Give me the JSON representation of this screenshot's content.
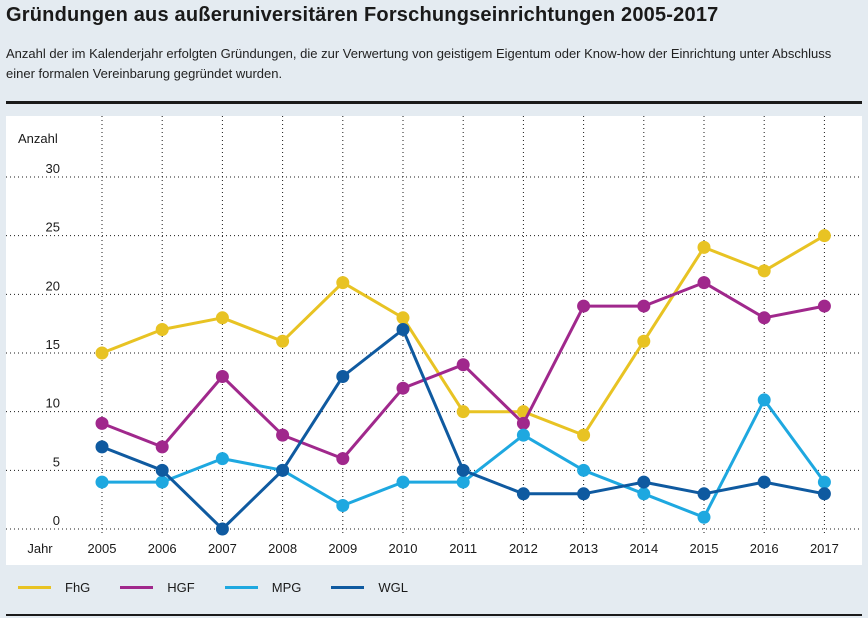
{
  "chart_data": {
    "type": "line",
    "title": "Gründungen aus außeruniversitären Forschungseinrichtungen 2005-2017",
    "subtitle": "Anzahl der im Kalenderjahr erfolgten Gründungen, die zur Verwertung von geistigem Eigentum oder Know-how der Einrichtung unter Abschluss einer formalen Vereinbarung gegründet wurden.",
    "ylabel": "Anzahl",
    "xlabel": "Jahr",
    "x": [
      "2005",
      "2006",
      "2007",
      "2008",
      "2009",
      "2010",
      "2011",
      "2012",
      "2013",
      "2014",
      "2015",
      "2016",
      "2017"
    ],
    "yticks": [
      0,
      5,
      10,
      15,
      20,
      25,
      30
    ],
    "ylim": [
      0,
      30
    ],
    "grid": "vertical-dotted",
    "legend_position": "bottom",
    "series": [
      {
        "name": "FhG",
        "color": "#e8c323",
        "values": [
          15,
          17,
          18,
          16,
          21,
          18,
          10,
          10,
          8,
          16,
          24,
          22,
          25
        ]
      },
      {
        "name": "HGF",
        "color": "#a0288c",
        "values": [
          9,
          7,
          13,
          8,
          6,
          12,
          14,
          9,
          19,
          19,
          21,
          18,
          19
        ]
      },
      {
        "name": "MPG",
        "color": "#1ea8e0",
        "values": [
          4,
          4,
          6,
          5,
          2,
          4,
          4,
          8,
          5,
          3,
          1,
          11,
          4
        ]
      },
      {
        "name": "WGL",
        "color": "#0f5aa0",
        "values": [
          7,
          5,
          0,
          5,
          13,
          17,
          5,
          3,
          3,
          4,
          3,
          4,
          3
        ]
      }
    ]
  }
}
